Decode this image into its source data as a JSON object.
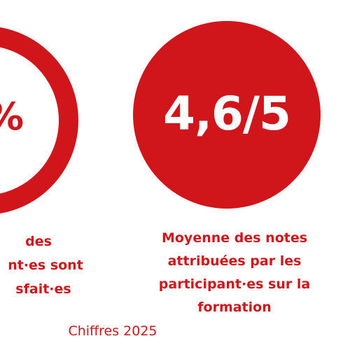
{
  "stats": [
    {
      "value": "%",
      "caption_lines": [
        "des",
        "nt·es sont",
        "sfait·es"
      ]
    },
    {
      "value": "4,6/5",
      "caption_lines": [
        "Moyenne des notes",
        "attribuées par les",
        "participant·es sur la",
        "formation"
      ]
    }
  ],
  "footer": "Chiffres 2025",
  "colors": {
    "accent": "#d1161b",
    "background": "#ffffff"
  }
}
